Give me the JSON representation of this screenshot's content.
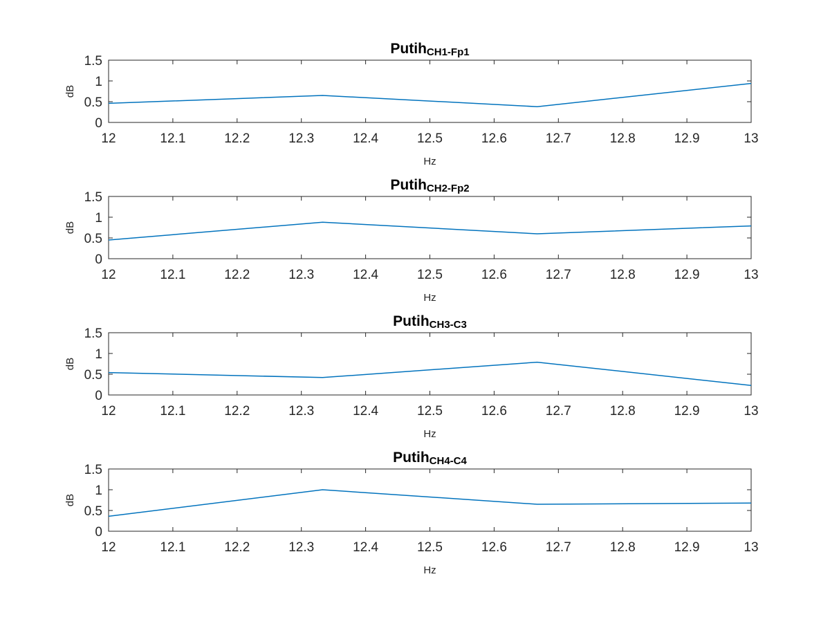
{
  "colors": {
    "background": "#ffffff",
    "axes": "#262626",
    "series": "#0072BD"
  },
  "chart_data": [
    {
      "type": "line",
      "title": "Putih",
      "title_subscript": "CH1-Fp1",
      "xlabel": "Hz",
      "ylabel": "dB",
      "xlim": [
        12,
        13
      ],
      "ylim": [
        0,
        1.5
      ],
      "xticks": [
        "12",
        "12.1",
        "12.2",
        "12.3",
        "12.4",
        "12.5",
        "12.6",
        "12.7",
        "12.8",
        "12.9",
        "13"
      ],
      "yticks": [
        "0",
        "0.5",
        "1",
        "1.5"
      ],
      "grid": false,
      "series": [
        {
          "x": [
            12,
            12.333,
            12.667,
            13
          ],
          "values": [
            0.46,
            0.65,
            0.38,
            0.94
          ]
        }
      ]
    },
    {
      "type": "line",
      "title": "Putih",
      "title_subscript": "CH2-Fp2",
      "xlabel": "Hz",
      "ylabel": "dB",
      "xlim": [
        12,
        13
      ],
      "ylim": [
        0,
        1.5
      ],
      "xticks": [
        "12",
        "12.1",
        "12.2",
        "12.3",
        "12.4",
        "12.5",
        "12.6",
        "12.7",
        "12.8",
        "12.9",
        "13"
      ],
      "yticks": [
        "0",
        "0.5",
        "1",
        "1.5"
      ],
      "grid": false,
      "series": [
        {
          "x": [
            12,
            12.333,
            12.667,
            13
          ],
          "values": [
            0.45,
            0.88,
            0.6,
            0.79
          ]
        }
      ]
    },
    {
      "type": "line",
      "title": "Putih",
      "title_subscript": "CH3-C3",
      "xlabel": "Hz",
      "ylabel": "dB",
      "xlim": [
        12,
        13
      ],
      "ylim": [
        0,
        1.5
      ],
      "xticks": [
        "12",
        "12.1",
        "12.2",
        "12.3",
        "12.4",
        "12.5",
        "12.6",
        "12.7",
        "12.8",
        "12.9",
        "13"
      ],
      "yticks": [
        "0",
        "0.5",
        "1",
        "1.5"
      ],
      "grid": false,
      "series": [
        {
          "x": [
            12,
            12.333,
            12.667,
            13
          ],
          "values": [
            0.54,
            0.42,
            0.79,
            0.23
          ]
        }
      ]
    },
    {
      "type": "line",
      "title": "Putih",
      "title_subscript": "CH4-C4",
      "xlabel": "Hz",
      "ylabel": "dB",
      "xlim": [
        12,
        13
      ],
      "ylim": [
        0,
        1.5
      ],
      "xticks": [
        "12",
        "12.1",
        "12.2",
        "12.3",
        "12.4",
        "12.5",
        "12.6",
        "12.7",
        "12.8",
        "12.9",
        "13"
      ],
      "yticks": [
        "0",
        "0.5",
        "1",
        "1.5"
      ],
      "grid": false,
      "series": [
        {
          "x": [
            12,
            12.333,
            12.667,
            13
          ],
          "values": [
            0.36,
            1.0,
            0.65,
            0.68
          ]
        }
      ]
    }
  ]
}
